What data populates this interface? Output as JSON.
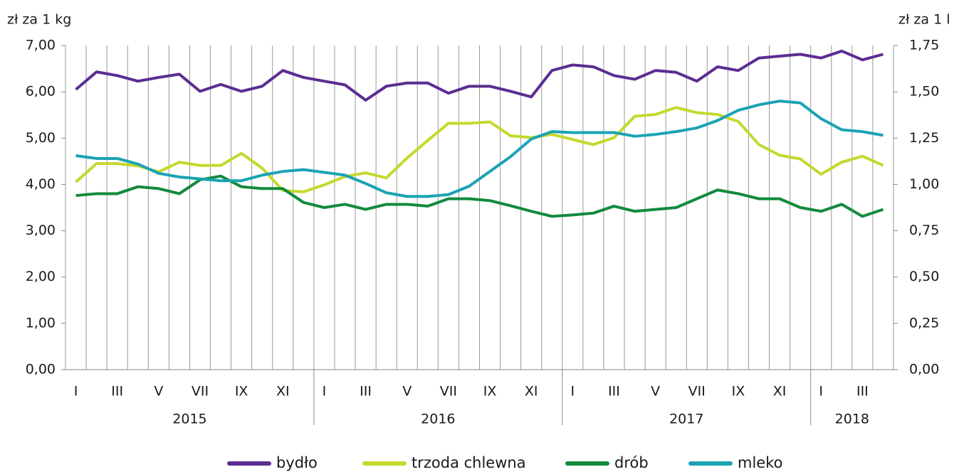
{
  "chart_data": {
    "type": "line",
    "ylabel": "zł za 1 kg",
    "y2label": "zł za 1 l",
    "categories": [
      "I",
      null,
      "III",
      null,
      "V",
      null,
      "VII",
      null,
      "IX",
      null,
      "XI",
      null,
      "I",
      null,
      "III",
      null,
      "V",
      null,
      "VII",
      null,
      "IX",
      null,
      "XI",
      null,
      "I",
      null,
      "III",
      null,
      "V",
      null,
      "VII",
      null,
      "IX",
      null,
      "XI",
      null,
      "I",
      null,
      "III",
      null
    ],
    "groups": [
      {
        "label": "2015",
        "size": 12
      },
      {
        "label": "2016",
        "size": 12
      },
      {
        "label": "2017",
        "size": 12
      },
      {
        "label": "2018",
        "size": 4
      }
    ],
    "ylim": [
      0,
      7
    ],
    "yticks": [
      {
        "value": 0,
        "label": "0,00"
      },
      {
        "value": 1,
        "label": "1,00"
      },
      {
        "value": 2,
        "label": "2,00"
      },
      {
        "value": 3,
        "label": "3,00"
      },
      {
        "value": 4,
        "label": "4,00"
      },
      {
        "value": 5,
        "label": "5,00"
      },
      {
        "value": 6,
        "label": "6,00"
      },
      {
        "value": 7,
        "label": "7,00"
      }
    ],
    "y2lim": [
      0,
      1.75
    ],
    "y2ticks": [
      {
        "value": 0,
        "label": "0,00"
      },
      {
        "value": 0.25,
        "label": "0,25"
      },
      {
        "value": 0.5,
        "label": "0,50"
      },
      {
        "value": 0.75,
        "label": "0,75"
      },
      {
        "value": 1,
        "label": "1,00"
      },
      {
        "value": 1.25,
        "label": "1,25"
      },
      {
        "value": 1.5,
        "label": "1,50"
      },
      {
        "value": 1.75,
        "label": "1,75"
      }
    ],
    "grid": true,
    "legend": "bottom",
    "series": [
      {
        "name": "bydło",
        "color": "#5b2d91",
        "values": [
          6.05,
          6.43,
          6.35,
          6.23,
          6.31,
          6.38,
          6.01,
          6.16,
          6.01,
          6.12,
          6.46,
          6.31,
          6.23,
          6.15,
          5.82,
          6.12,
          6.19,
          6.19,
          5.97,
          6.12,
          6.12,
          6.01,
          5.89,
          6.46,
          6.58,
          6.54,
          6.35,
          6.27,
          6.46,
          6.42,
          6.23,
          6.54,
          6.46,
          6.73,
          6.77,
          6.81,
          6.73,
          6.88,
          6.69,
          6.81
        ]
      },
      {
        "name": "trzoda chlewna",
        "color": "#c5d82e",
        "values": [
          4.05,
          4.45,
          4.45,
          4.4,
          4.27,
          4.48,
          4.41,
          4.41,
          4.67,
          4.35,
          3.87,
          3.84,
          3.99,
          4.17,
          4.25,
          4.14,
          4.57,
          4.95,
          5.32,
          5.32,
          5.35,
          5.05,
          5.01,
          5.08,
          4.97,
          4.86,
          5.01,
          5.47,
          5.51,
          5.66,
          5.55,
          5.51,
          5.36,
          4.86,
          4.63,
          4.55,
          4.22,
          4.48,
          4.61,
          4.41
        ]
      },
      {
        "name": "drób",
        "color": "#138a3e",
        "values": [
          3.76,
          3.8,
          3.8,
          3.95,
          3.91,
          3.8,
          4.1,
          4.18,
          3.95,
          3.91,
          3.91,
          3.61,
          3.5,
          3.57,
          3.46,
          3.57,
          3.57,
          3.53,
          3.69,
          3.69,
          3.65,
          3.54,
          3.42,
          3.31,
          3.34,
          3.38,
          3.53,
          3.42,
          3.46,
          3.5,
          3.69,
          3.88,
          3.8,
          3.69,
          3.69,
          3.5,
          3.42,
          3.57,
          3.31,
          3.46
        ]
      },
      {
        "name": "mleko",
        "color": "#1ba3b3",
        "axis": "y2",
        "values": [
          1.155,
          1.14,
          1.14,
          1.11,
          1.06,
          1.04,
          1.03,
          1.02,
          1.02,
          1.05,
          1.07,
          1.08,
          1.065,
          1.05,
          1.005,
          0.955,
          0.935,
          0.935,
          0.945,
          0.99,
          1.07,
          1.15,
          1.245,
          1.285,
          1.28,
          1.28,
          1.28,
          1.26,
          1.27,
          1.285,
          1.305,
          1.345,
          1.4,
          1.43,
          1.45,
          1.44,
          1.355,
          1.295,
          1.285,
          1.265
        ]
      }
    ]
  }
}
